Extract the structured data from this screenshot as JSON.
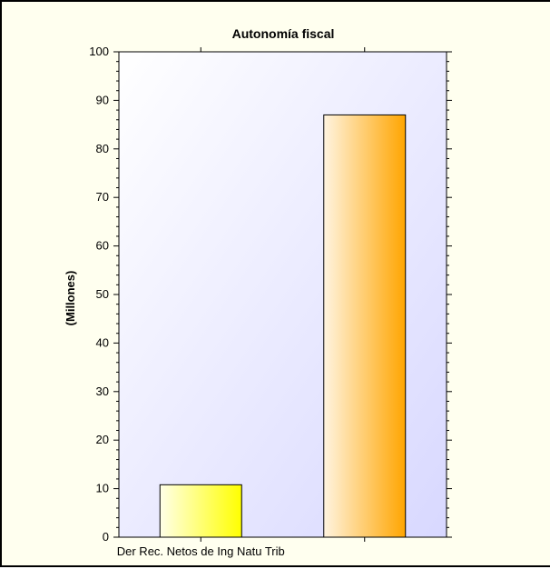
{
  "chart_data": {
    "type": "bar",
    "title": "Autonomía fiscal",
    "ylabel": "(Millones)",
    "xlabel": "",
    "ylim": [
      0,
      100
    ],
    "yticks": [
      0,
      10,
      20,
      30,
      40,
      50,
      60,
      70,
      80,
      90,
      100
    ],
    "categories": [
      "Der Rec. Netos de Ing Natu Trib",
      ""
    ],
    "series": [
      {
        "values": [
          10.8,
          87.0
        ]
      }
    ],
    "grid": false,
    "legend": "none",
    "colors": {
      "bar1_light": "#ffffe8",
      "bar1_dark": "#ffff00",
      "bar2_light": "#fff4e0",
      "bar2_dark": "#ffa500",
      "plot_bg_light": "#ffffff",
      "plot_bg_dark": "#d8d8ff",
      "frame_bg": "#ffffef"
    }
  }
}
